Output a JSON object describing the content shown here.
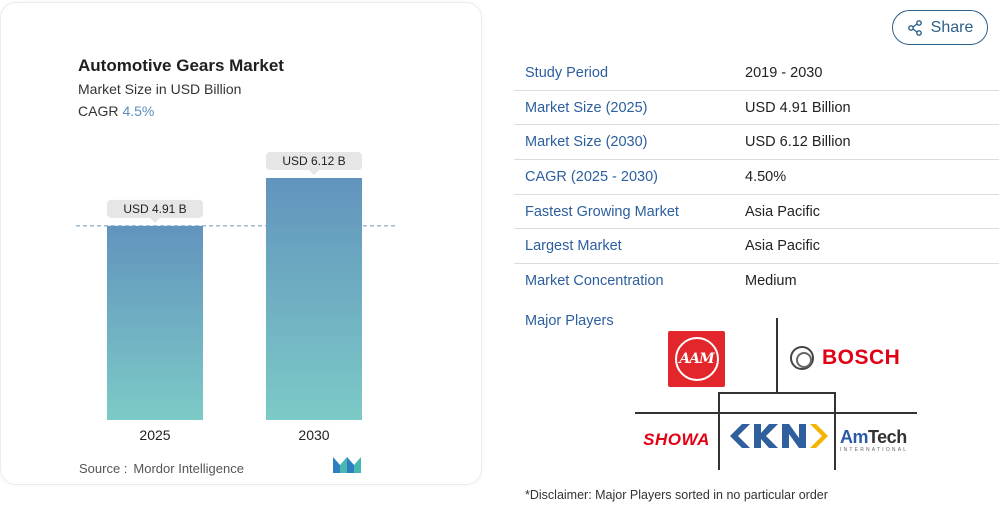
{
  "chart": {
    "title": "Automotive Gears Market",
    "subtitle": "Market Size in USD Billion",
    "cagr_label": "CAGR",
    "cagr_value": "4.5%",
    "source_label": "Source :",
    "source_value": "Mordor Intelligence",
    "logo_icon": "mordor-intelligence-logo-icon"
  },
  "chart_data": {
    "type": "bar",
    "categories": [
      "2025",
      "2030"
    ],
    "values": [
      4.91,
      6.12
    ],
    "data_labels": [
      "USD 4.91 B",
      "USD 6.12 B"
    ],
    "title": "Automotive Gears Market",
    "ylabel": "Market Size in USD Billion",
    "xlabel": "",
    "ylim": [
      0,
      6.8
    ],
    "reference_line_value": 4.91,
    "colors": {
      "bar_top": "#6294bd",
      "bar_bottom": "#7ccac7",
      "dashed_line": "#6f96b8"
    }
  },
  "share": {
    "label": "Share",
    "icon": "share-icon"
  },
  "table": {
    "rows": [
      {
        "key": "Study Period",
        "value": "2019 - 2030"
      },
      {
        "key": "Market Size (2025)",
        "value": "USD 4.91 Billion"
      },
      {
        "key": "Market Size (2030)",
        "value": "USD 6.12 Billion"
      },
      {
        "key": "CAGR (2025 - 2030)",
        "value": "4.50%"
      },
      {
        "key": "Fastest Growing Market",
        "value": "Asia Pacific"
      },
      {
        "key": "Largest Market",
        "value": "Asia Pacific"
      },
      {
        "key": "Market Concentration",
        "value": "Medium"
      }
    ]
  },
  "players": {
    "label": "Major Players",
    "logos": {
      "aam": "AAM",
      "bosch": "BOSCH",
      "showa": "SHOWA",
      "gkn": "GKN",
      "amtech": "AmTech",
      "amtech_sub": "INTERNATIONAL"
    }
  },
  "disclaimer": "*Disclaimer: Major Players sorted in no particular order",
  "colors": {
    "accent": "#2c5f9e",
    "brand_red": "#e20015"
  }
}
